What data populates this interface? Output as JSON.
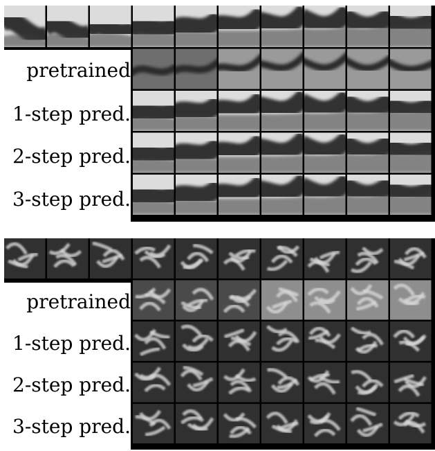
{
  "figure": {
    "row_labels": [
      "pretrained",
      "1-step pred.",
      "2-step pred.",
      "3-step pred."
    ],
    "context_frames": 3,
    "frames_per_row": 10,
    "panels": [
      {
        "id": "top",
        "style": "curved-band"
      },
      {
        "id": "bottom",
        "style": "noisy-swirl"
      }
    ]
  }
}
